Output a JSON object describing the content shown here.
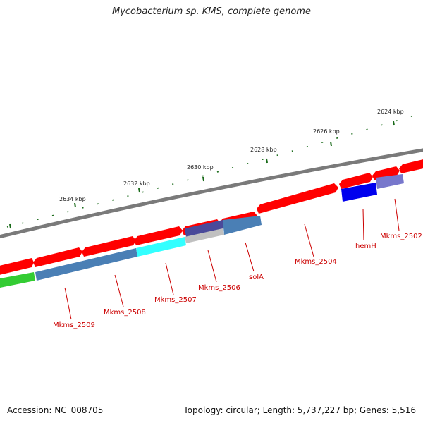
{
  "title": "Mycobacterium sp. KMS, complete genome",
  "footer": {
    "accession": "Accession: NC_008705",
    "summary": "Topology: circular; Length: 5,737,227 bp; Genes: 5,516"
  },
  "scale_labels": [
    "2624 kbp",
    "2626 kbp",
    "2628 kbp",
    "2630 kbp",
    "2632 kbp",
    "2634 kbp"
  ],
  "gene_labels": [
    "Mkms_2502",
    "hemH",
    "Mkms_2504",
    "solA",
    "Mkms_2506",
    "Mkms_2507",
    "Mkms_2508",
    "Mkms_2509"
  ],
  "colors": {
    "forward_cds": "#ff0000",
    "label": "#cc0000",
    "tick": "#1a6b1a",
    "backbone": "#7a7a7a",
    "steelblue": "#4a7fb5",
    "cyan": "#33ffff",
    "slateblue": "#4a4a9a",
    "blue": "#0000ee",
    "lavender": "#7777cc",
    "green": "#33cc33"
  }
}
